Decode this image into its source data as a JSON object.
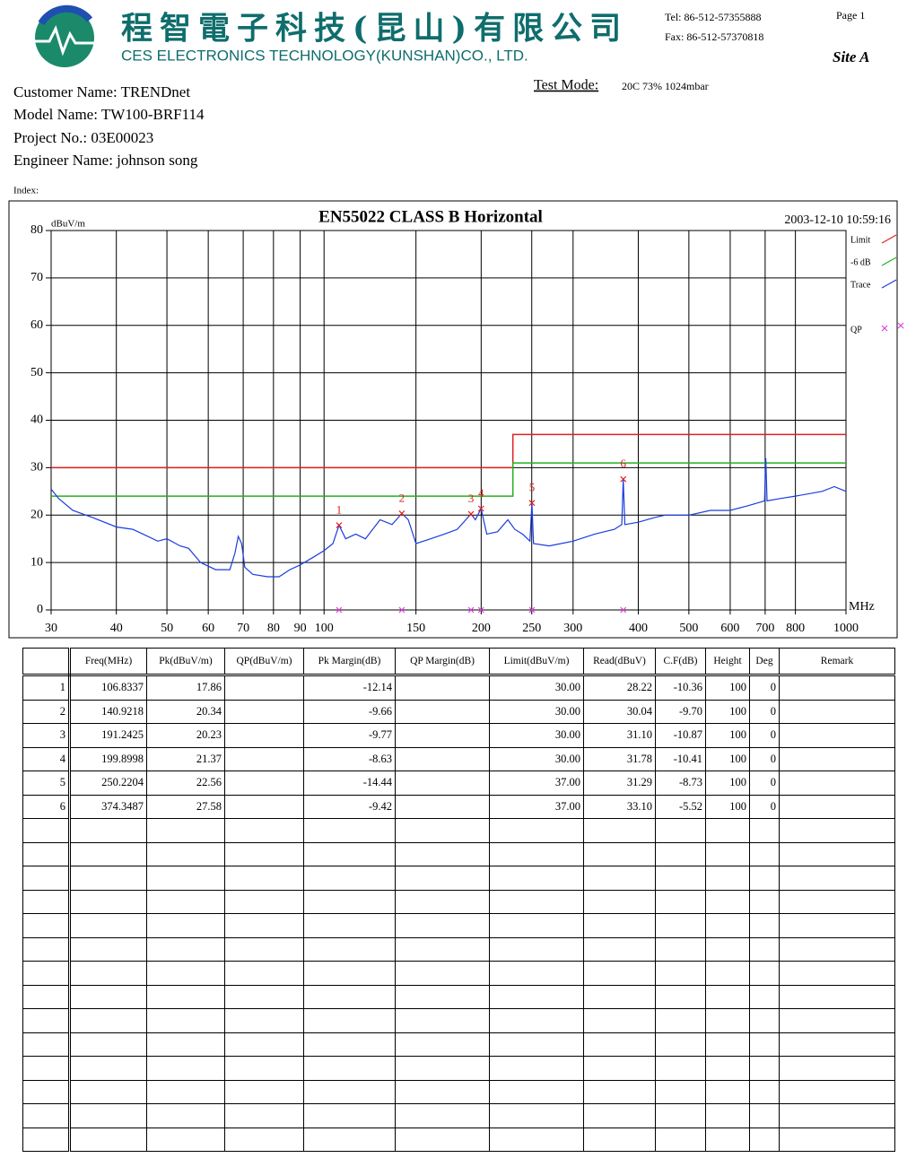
{
  "header": {
    "company_cn": "程智電子科技(昆山)有限公司",
    "company_en": "CES ELECTRONICS TECHNOLOGY(KUNSHAN)CO., LTD.",
    "tel": "Tel: 86-512-57355888",
    "fax": "Fax: 86-512-57370818",
    "page": "Page 1",
    "site": "Site A"
  },
  "info": {
    "test_mode_label": "Test Mode:",
    "test_mode": "20C 73% 1024mbar",
    "customer": "Customer Name: TRENDnet",
    "model": "Model Name: TW100-BRF114",
    "project": "Project No.: 03E00023",
    "engineer": "Engineer Name: johnson song",
    "index": "Index:"
  },
  "chart_data": {
    "type": "line",
    "title": "EN55022 CLASS B  Horizontal",
    "timestamp": "2003-12-10 10:59:16",
    "y_label": "dBuV/m",
    "x_label": "MHz",
    "xlim": [
      30,
      1000
    ],
    "x_log": true,
    "ylim": [
      0,
      80
    ],
    "grid": true,
    "xticks": [
      30,
      40,
      50,
      60,
      70,
      80,
      90,
      100,
      150,
      200,
      250,
      300,
      400,
      500,
      600,
      700,
      800,
      1000
    ],
    "yticks": [
      0,
      10,
      20,
      30,
      40,
      50,
      60,
      70,
      80
    ],
    "series": [
      {
        "name": "Limit",
        "color": "#e02020",
        "style": "line",
        "x": [
          30,
          230,
          230,
          1000
        ],
        "values": [
          30,
          30,
          37,
          37
        ]
      },
      {
        "name": "-6 dB",
        "color": "#20b020",
        "style": "line",
        "x": [
          30,
          230,
          230,
          1000
        ],
        "values": [
          24,
          24,
          31,
          31
        ]
      },
      {
        "name": "Trace",
        "color": "#1a3de0",
        "style": "line",
        "x": [
          30,
          31,
          33,
          36,
          40,
          43,
          45,
          48,
          50,
          53,
          55,
          58,
          62,
          66,
          67.5,
          68.5,
          69.5,
          70.5,
          73,
          78,
          82,
          86,
          90,
          95,
          100,
          104,
          106.8337,
          110,
          115,
          120,
          128,
          135,
          140.9218,
          145,
          150,
          160,
          170,
          180,
          191.2425,
          195,
          199.8998,
          205,
          215,
          225,
          232,
          240,
          248,
          250.2204,
          252,
          270,
          300,
          330,
          360,
          372,
          374.3487,
          377,
          400,
          430,
          450,
          500,
          550,
          600,
          650,
          698,
          702,
          706,
          750,
          800,
          900,
          950,
          1000
        ],
        "values": [
          25.5,
          23.5,
          21,
          19.5,
          17.5,
          17,
          16,
          14.5,
          15,
          13.5,
          13,
          10,
          8.5,
          8.5,
          12,
          15.5,
          14,
          9,
          7.5,
          7,
          7,
          8.5,
          9.5,
          11,
          12.5,
          14,
          17.86,
          15,
          16,
          15,
          19,
          18,
          20.34,
          19,
          14,
          15,
          16,
          17,
          20.23,
          19,
          21.37,
          16,
          16.5,
          19,
          17,
          16,
          14.5,
          22.56,
          14,
          13.5,
          14.5,
          16,
          17,
          18,
          27.58,
          18,
          18.5,
          19.5,
          20,
          20,
          21,
          21,
          22,
          23,
          32,
          23,
          23.5,
          24,
          25,
          26,
          25
        ]
      },
      {
        "name": "QP",
        "color": "#e040e0",
        "style": "marker",
        "x": [
          106.8337,
          140.9218,
          191.2425,
          199.8998,
          250.2204,
          374.3487
        ],
        "values": [
          0,
          0,
          0,
          0,
          0,
          0
        ]
      }
    ],
    "markers": {
      "color": "#e02020",
      "labels": [
        "1",
        "2",
        "3",
        "4",
        "5",
        "6"
      ],
      "x": [
        106.8337,
        140.9218,
        191.2425,
        199.8998,
        250.2204,
        374.3487
      ],
      "values": [
        17.86,
        20.34,
        20.23,
        21.37,
        22.56,
        27.58
      ]
    }
  },
  "table": {
    "header": [
      "Freq(MHz)",
      "Pk(dBuV/m)",
      "QP(dBuV/m)",
      "Pk Margin(dB)",
      "QP Margin(dB)",
      "Limit(dBuV/m)",
      "Read(dBuV)",
      "C.F(dB)",
      "Height",
      "Deg",
      "Remark"
    ],
    "rows": [
      [
        "1",
        "106.8337",
        "17.86",
        null,
        "-12.14",
        null,
        "30.00",
        "28.22",
        "-10.36",
        "100",
        "0",
        null
      ],
      [
        "2",
        "140.9218",
        "20.34",
        null,
        "-9.66",
        null,
        "30.00",
        "30.04",
        "-9.70",
        "100",
        "0",
        null
      ],
      [
        "3",
        "191.2425",
        "20.23",
        null,
        "-9.77",
        null,
        "30.00",
        "31.10",
        "-10.87",
        "100",
        "0",
        null
      ],
      [
        "4",
        "199.8998",
        "21.37",
        null,
        "-8.63",
        null,
        "30.00",
        "31.78",
        "-10.41",
        "100",
        "0",
        null
      ],
      [
        "5",
        "250.2204",
        "22.56",
        null,
        "-14.44",
        null,
        "37.00",
        "31.29",
        "-8.73",
        "100",
        "0",
        null
      ],
      [
        "6",
        "374.3487",
        "27.58",
        null,
        "-9.42",
        null,
        "37.00",
        "33.10",
        "-5.52",
        "100",
        "0",
        null
      ]
    ]
  }
}
